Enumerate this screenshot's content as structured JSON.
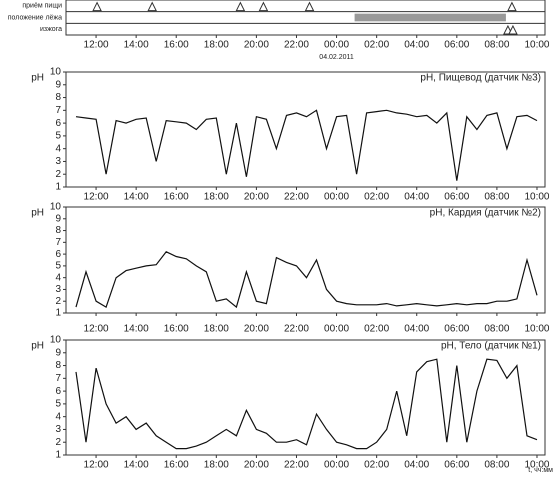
{
  "chart_data": [
    {
      "type": "events",
      "date": "04.02.2011",
      "xlim": [
        10.5,
        34.4
      ],
      "xticks": [
        {
          "value": 12,
          "label": "12:00"
        },
        {
          "value": 14,
          "label": "14:00"
        },
        {
          "value": 16,
          "label": "16:00"
        },
        {
          "value": 18,
          "label": "18:00"
        },
        {
          "value": 20,
          "label": "20:00"
        },
        {
          "value": 22,
          "label": "22:00"
        },
        {
          "value": 24,
          "label": "00:00"
        },
        {
          "value": 26,
          "label": "02:00"
        },
        {
          "value": 28,
          "label": "04:00"
        },
        {
          "value": 30,
          "label": "06:00"
        },
        {
          "value": 32,
          "label": "08:00"
        },
        {
          "value": 34,
          "label": "10:00"
        }
      ],
      "rows": [
        {
          "name": "приём пищи",
          "times": [
            12.05,
            14.8,
            19.2,
            20.35,
            22.65,
            32.75
          ]
        },
        {
          "name": "положение лёжа",
          "spans": [
            [
              24.9,
              32.45
            ]
          ],
          "color": "#999999"
        },
        {
          "name": "изжога",
          "times": [
            32.55,
            32.8
          ]
        }
      ]
    },
    {
      "type": "line",
      "title": "pH, Пищевод (датчик №3)",
      "ylabel": "pH",
      "xlim": [
        10.5,
        34.4
      ],
      "ylim": [
        1,
        10
      ],
      "yticks": [
        1,
        2,
        3,
        4,
        5,
        6,
        7,
        8,
        9,
        10
      ],
      "xticks": [
        {
          "value": 12,
          "label": "12:00"
        },
        {
          "value": 14,
          "label": "14:00"
        },
        {
          "value": 16,
          "label": "16:00"
        },
        {
          "value": 18,
          "label": "18:00"
        },
        {
          "value": 20,
          "label": "20:00"
        },
        {
          "value": 22,
          "label": "22:00"
        },
        {
          "value": 24,
          "label": "00:00"
        },
        {
          "value": 26,
          "label": "02:00"
        },
        {
          "value": 28,
          "label": "04:00"
        },
        {
          "value": 30,
          "label": "06:00"
        },
        {
          "value": 32,
          "label": "08:00"
        },
        {
          "value": 34,
          "label": "10:00"
        }
      ],
      "x": [
        11,
        11.5,
        12,
        12.5,
        13,
        13.5,
        14,
        14.5,
        15,
        15.5,
        16,
        16.5,
        17,
        17.5,
        18,
        18.5,
        19,
        19.5,
        20,
        20.5,
        21,
        21.5,
        22,
        22.5,
        23,
        23.5,
        24,
        24.5,
        25,
        25.5,
        26,
        26.5,
        27,
        27.5,
        28,
        28.5,
        29,
        29.5,
        30,
        30.5,
        31,
        31.5,
        32,
        32.5,
        33,
        33.5,
        34
      ],
      "series": [
        {
          "color": "#111111",
          "values": [
            6.5,
            6.4,
            6.3,
            2,
            6.2,
            6,
            6.3,
            6.4,
            3,
            6.2,
            6.1,
            6,
            5.5,
            6.3,
            6.4,
            2,
            6,
            1.8,
            6.5,
            6.3,
            4,
            6.6,
            6.8,
            6.5,
            7,
            4,
            6.5,
            6.6,
            2,
            6.8,
            6.9,
            7,
            6.8,
            6.7,
            6.5,
            6.6,
            6,
            6.8,
            1.5,
            6.5,
            5.5,
            6.6,
            6.8,
            4,
            6.5,
            6.6,
            6.2
          ]
        }
      ]
    },
    {
      "type": "line",
      "title": "pH, Кардия (датчик №2)",
      "ylabel": "pH",
      "xlim": [
        10.5,
        34.4
      ],
      "ylim": [
        1,
        10
      ],
      "yticks": [
        1,
        2,
        3,
        4,
        5,
        6,
        7,
        8,
        9,
        10
      ],
      "xticks": [
        {
          "value": 12,
          "label": "12:00"
        },
        {
          "value": 14,
          "label": "14:00"
        },
        {
          "value": 16,
          "label": "16:00"
        },
        {
          "value": 18,
          "label": "18:00"
        },
        {
          "value": 20,
          "label": "20:00"
        },
        {
          "value": 22,
          "label": "22:00"
        },
        {
          "value": 24,
          "label": "00:00"
        },
        {
          "value": 26,
          "label": "02:00"
        },
        {
          "value": 28,
          "label": "04:00"
        },
        {
          "value": 30,
          "label": "06:00"
        },
        {
          "value": 32,
          "label": "08:00"
        },
        {
          "value": 34,
          "label": "10:00"
        }
      ],
      "x": [
        11,
        11.5,
        12,
        12.5,
        13,
        13.5,
        14,
        14.5,
        15,
        15.5,
        16,
        16.5,
        17,
        17.5,
        18,
        18.5,
        19,
        19.5,
        20,
        20.5,
        21,
        21.5,
        22,
        22.5,
        23,
        23.5,
        24,
        24.5,
        25,
        25.5,
        26,
        26.5,
        27,
        27.5,
        28,
        28.5,
        29,
        29.5,
        30,
        30.5,
        31,
        31.5,
        32,
        32.5,
        33,
        33.5,
        34
      ],
      "series": [
        {
          "color": "#111111",
          "values": [
            1.5,
            4.5,
            2,
            1.5,
            4,
            4.6,
            4.8,
            5,
            5.1,
            6.2,
            5.8,
            5.6,
            5,
            4.5,
            2,
            2.2,
            1.5,
            4.5,
            2,
            1.8,
            5.7,
            5.3,
            5,
            4,
            5.5,
            3,
            2,
            1.8,
            1.7,
            1.7,
            1.7,
            1.8,
            1.6,
            1.7,
            1.8,
            1.7,
            1.6,
            1.7,
            1.8,
            1.7,
            1.8,
            1.8,
            2,
            2,
            2.2,
            5.5,
            2.5
          ]
        }
      ]
    },
    {
      "type": "line",
      "title": "pH, Тело (датчик №1)",
      "ylabel": "pH",
      "xlabel": "t, чч:мм",
      "xlim": [
        10.5,
        34.4
      ],
      "ylim": [
        1,
        10
      ],
      "yticks": [
        1,
        2,
        3,
        4,
        5,
        6,
        7,
        8,
        9,
        10
      ],
      "xticks": [
        {
          "value": 12,
          "label": "12:00"
        },
        {
          "value": 14,
          "label": "14:00"
        },
        {
          "value": 16,
          "label": "16:00"
        },
        {
          "value": 18,
          "label": "18:00"
        },
        {
          "value": 20,
          "label": "20:00"
        },
        {
          "value": 22,
          "label": "22:00"
        },
        {
          "value": 24,
          "label": "00:00"
        },
        {
          "value": 26,
          "label": "02:00"
        },
        {
          "value": 28,
          "label": "04:00"
        },
        {
          "value": 30,
          "label": "06:00"
        },
        {
          "value": 32,
          "label": "08:00"
        },
        {
          "value": 34,
          "label": "10:00"
        }
      ],
      "x": [
        11,
        11.5,
        12,
        12.5,
        13,
        13.5,
        14,
        14.5,
        15,
        15.5,
        16,
        16.5,
        17,
        17.5,
        18,
        18.5,
        19,
        19.5,
        20,
        20.5,
        21,
        21.5,
        22,
        22.5,
        23,
        23.5,
        24,
        24.5,
        25,
        25.5,
        26,
        26.5,
        27,
        27.5,
        28,
        28.5,
        29,
        29.5,
        30,
        30.5,
        31,
        31.5,
        32,
        32.5,
        33,
        33.5,
        34
      ],
      "series": [
        {
          "color": "#111111",
          "values": [
            7.5,
            2,
            7.8,
            5,
            3.5,
            4,
            3,
            3.5,
            2.5,
            2,
            1.5,
            1.5,
            1.7,
            2,
            2.5,
            3,
            2.5,
            4.5,
            3,
            2.7,
            2,
            2,
            2.2,
            1.8,
            4.2,
            3,
            2,
            1.8,
            1.5,
            1.5,
            2,
            3,
            6,
            2.5,
            7.5,
            8.3,
            8.5,
            2,
            8,
            2,
            6,
            8.5,
            8.4,
            7,
            8,
            2.5,
            2.2
          ]
        }
      ]
    }
  ]
}
